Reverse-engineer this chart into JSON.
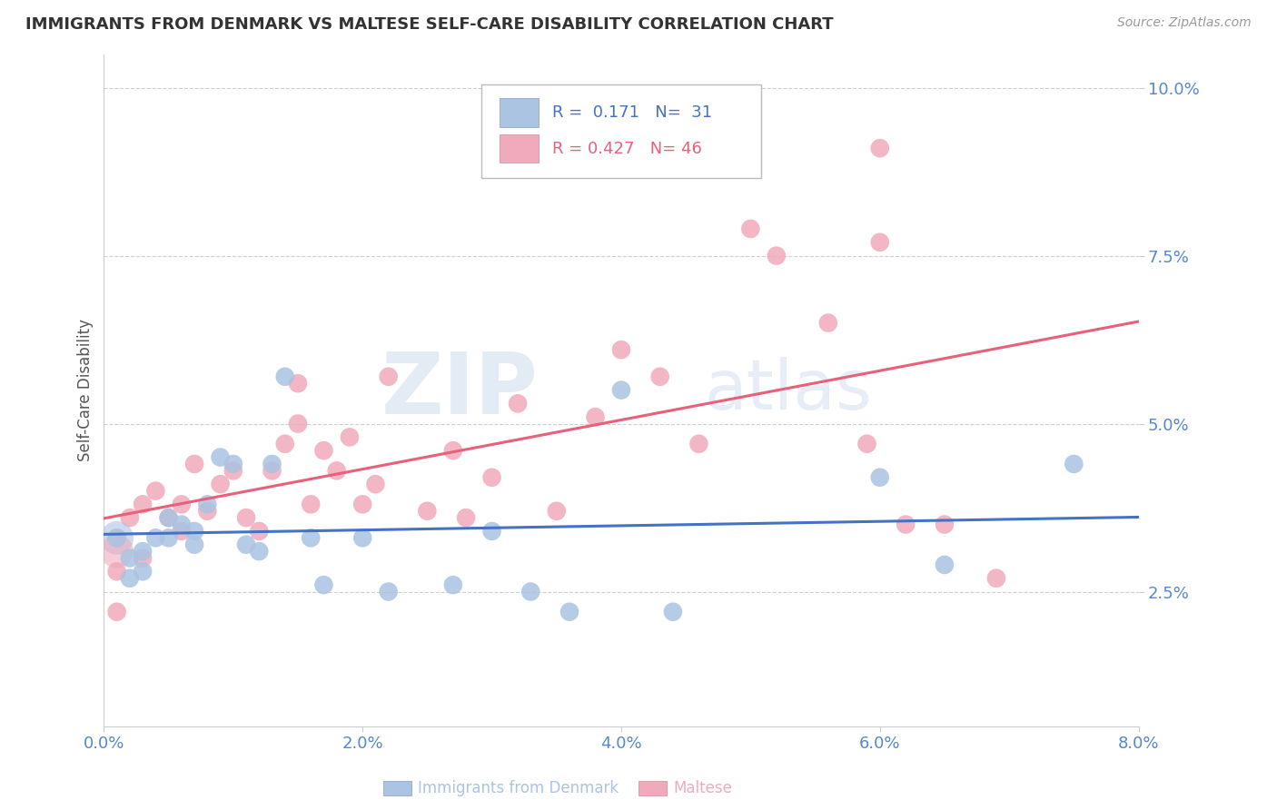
{
  "title": "IMMIGRANTS FROM DENMARK VS MALTESE SELF-CARE DISABILITY CORRELATION CHART",
  "source": "Source: ZipAtlas.com",
  "ylabel": "Self-Care Disability",
  "x_label_bottom": "Immigrants from Denmark",
  "x_label_bottom2": "Maltese",
  "xlim": [
    0.0,
    0.08
  ],
  "ylim": [
    0.005,
    0.105
  ],
  "yticks": [
    0.025,
    0.05,
    0.075,
    0.1
  ],
  "ytick_labels": [
    "2.5%",
    "5.0%",
    "7.5%",
    "10.0%"
  ],
  "xticks": [
    0.0,
    0.02,
    0.04,
    0.06,
    0.08
  ],
  "xtick_labels": [
    "0.0%",
    "2.0%",
    "4.0%",
    "6.0%",
    "8.0%"
  ],
  "blue_R": 0.171,
  "blue_N": 31,
  "pink_R": 0.427,
  "pink_N": 46,
  "blue_color": "#aac4e2",
  "pink_color": "#f0aabb",
  "blue_line_color": "#4472c4",
  "pink_line_color": "#e8607a",
  "blue_scatter": [
    [
      0.001,
      0.033
    ],
    [
      0.002,
      0.03
    ],
    [
      0.002,
      0.027
    ],
    [
      0.003,
      0.031
    ],
    [
      0.003,
      0.028
    ],
    [
      0.004,
      0.033
    ],
    [
      0.005,
      0.036
    ],
    [
      0.005,
      0.033
    ],
    [
      0.006,
      0.035
    ],
    [
      0.007,
      0.034
    ],
    [
      0.007,
      0.032
    ],
    [
      0.008,
      0.038
    ],
    [
      0.009,
      0.045
    ],
    [
      0.01,
      0.044
    ],
    [
      0.011,
      0.032
    ],
    [
      0.012,
      0.031
    ],
    [
      0.013,
      0.044
    ],
    [
      0.014,
      0.057
    ],
    [
      0.016,
      0.033
    ],
    [
      0.017,
      0.026
    ],
    [
      0.02,
      0.033
    ],
    [
      0.022,
      0.025
    ],
    [
      0.027,
      0.026
    ],
    [
      0.03,
      0.034
    ],
    [
      0.033,
      0.025
    ],
    [
      0.036,
      0.022
    ],
    [
      0.04,
      0.055
    ],
    [
      0.044,
      0.022
    ],
    [
      0.06,
      0.042
    ],
    [
      0.065,
      0.029
    ],
    [
      0.075,
      0.044
    ]
  ],
  "pink_scatter": [
    [
      0.001,
      0.033
    ],
    [
      0.001,
      0.028
    ],
    [
      0.002,
      0.036
    ],
    [
      0.003,
      0.03
    ],
    [
      0.003,
      0.038
    ],
    [
      0.004,
      0.04
    ],
    [
      0.005,
      0.036
    ],
    [
      0.006,
      0.034
    ],
    [
      0.006,
      0.038
    ],
    [
      0.007,
      0.044
    ],
    [
      0.008,
      0.037
    ],
    [
      0.009,
      0.041
    ],
    [
      0.01,
      0.043
    ],
    [
      0.011,
      0.036
    ],
    [
      0.012,
      0.034
    ],
    [
      0.013,
      0.043
    ],
    [
      0.014,
      0.047
    ],
    [
      0.015,
      0.05
    ],
    [
      0.015,
      0.056
    ],
    [
      0.016,
      0.038
    ],
    [
      0.017,
      0.046
    ],
    [
      0.018,
      0.043
    ],
    [
      0.019,
      0.048
    ],
    [
      0.02,
      0.038
    ],
    [
      0.021,
      0.041
    ],
    [
      0.022,
      0.057
    ],
    [
      0.025,
      0.037
    ],
    [
      0.027,
      0.046
    ],
    [
      0.028,
      0.036
    ],
    [
      0.03,
      0.042
    ],
    [
      0.032,
      0.053
    ],
    [
      0.035,
      0.037
    ],
    [
      0.038,
      0.051
    ],
    [
      0.04,
      0.061
    ],
    [
      0.043,
      0.057
    ],
    [
      0.046,
      0.047
    ],
    [
      0.05,
      0.079
    ],
    [
      0.052,
      0.075
    ],
    [
      0.056,
      0.065
    ],
    [
      0.059,
      0.047
    ],
    [
      0.06,
      0.077
    ],
    [
      0.06,
      0.091
    ],
    [
      0.062,
      0.035
    ],
    [
      0.065,
      0.035
    ],
    [
      0.069,
      0.027
    ],
    [
      0.001,
      0.022
    ]
  ],
  "watermark_text_zip": "ZIP",
  "watermark_text_atlas": "atlas",
  "background_color": "#ffffff",
  "grid_color": "#d0d0d0",
  "title_color": "#333333",
  "axis_label_color": "#555555",
  "tick_color": "#5588cc"
}
